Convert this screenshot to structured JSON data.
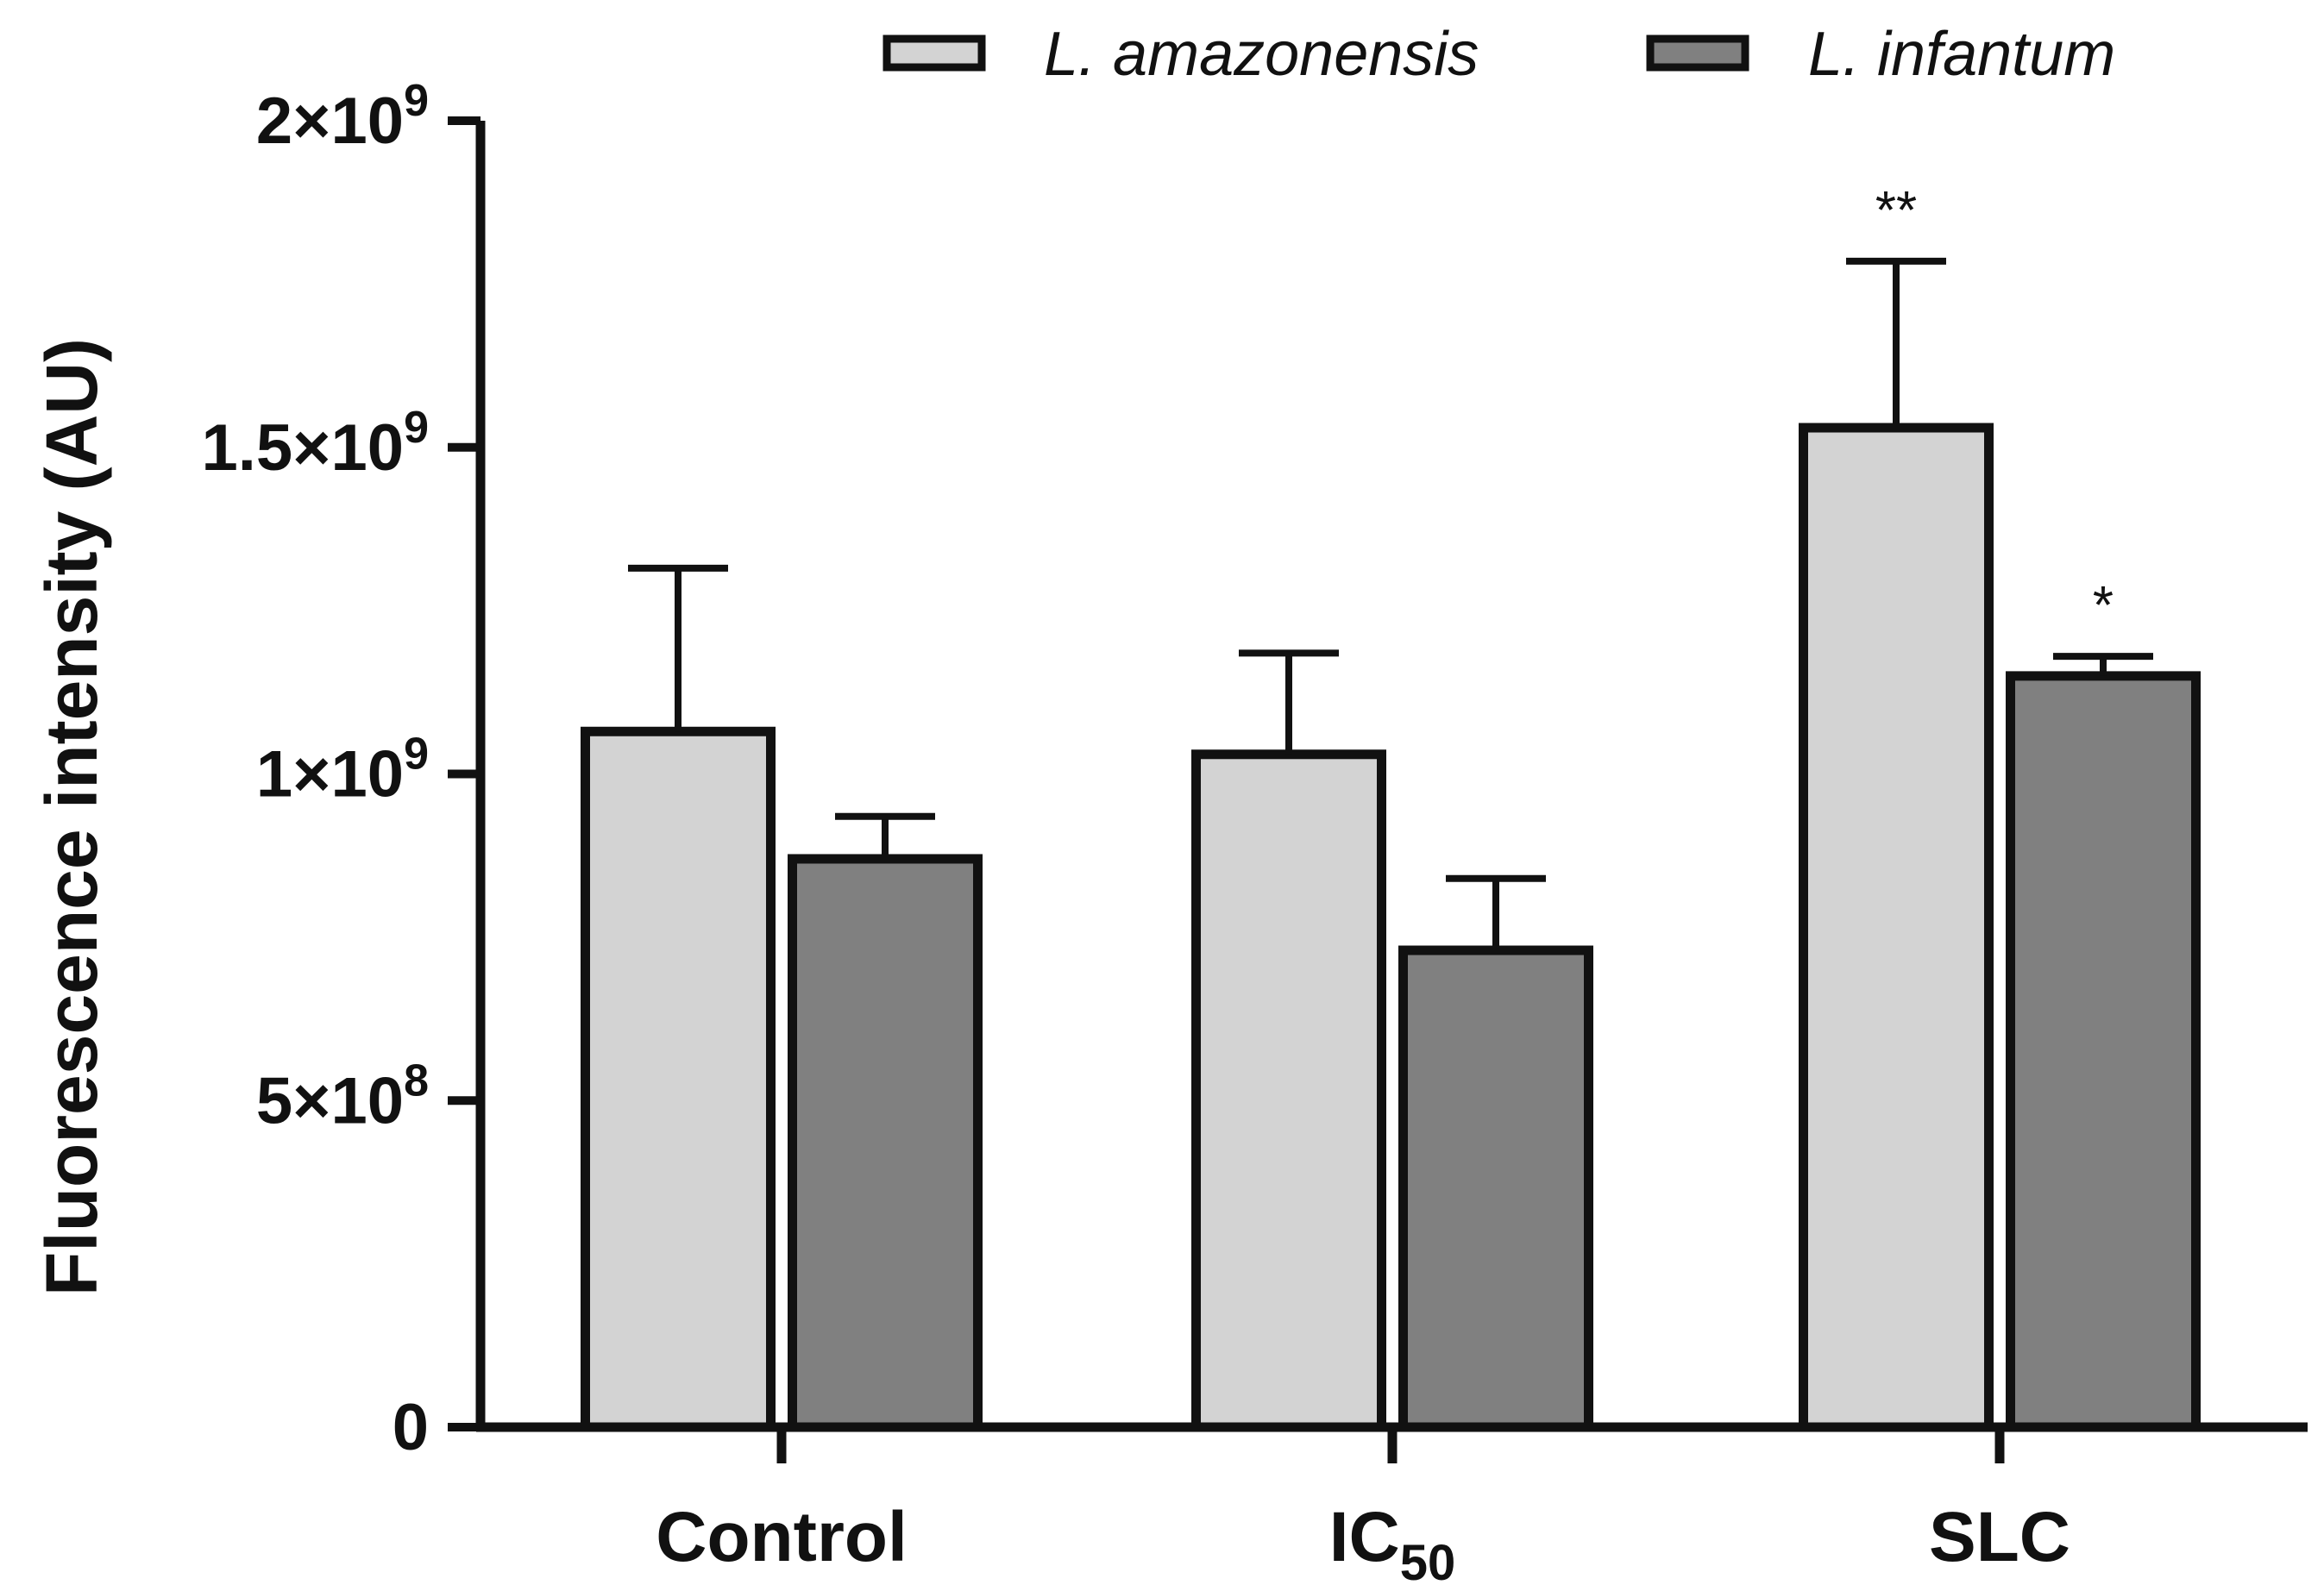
{
  "chart_data": {
    "type": "bar",
    "ylabel": "Fluorescence intensity (AU)",
    "ylim": [
      0,
      2000000000
    ],
    "y_ticks": [
      {
        "value": 0,
        "base": "0",
        "exp": ""
      },
      {
        "value": 500000000,
        "base": "5×10",
        "exp": "8"
      },
      {
        "value": 1000000000,
        "base": "1×10",
        "exp": "9"
      },
      {
        "value": 1500000000,
        "base": "1.5×10",
        "exp": "9"
      },
      {
        "value": 2000000000,
        "base": "2×10",
        "exp": "9"
      }
    ],
    "categories": [
      {
        "main": "Control",
        "sub": ""
      },
      {
        "main": "IC",
        "sub": "50"
      },
      {
        "main": "SLC",
        "sub": ""
      }
    ],
    "series": [
      {
        "name": "L. amazonensis",
        "color": "#d3d3d3",
        "values": [
          1065000000,
          1030000000,
          1530000000
        ],
        "errors": [
          250000000,
          155000000,
          255000000
        ],
        "significance": [
          "",
          "",
          "**"
        ]
      },
      {
        "name": "L. infantum",
        "color": "#808080",
        "values": [
          870000000,
          730000000,
          1150000000
        ],
        "errors": [
          65000000,
          110000000,
          30000000
        ],
        "significance": [
          "",
          "",
          "*"
        ]
      }
    ],
    "legend_position": "top-right"
  }
}
